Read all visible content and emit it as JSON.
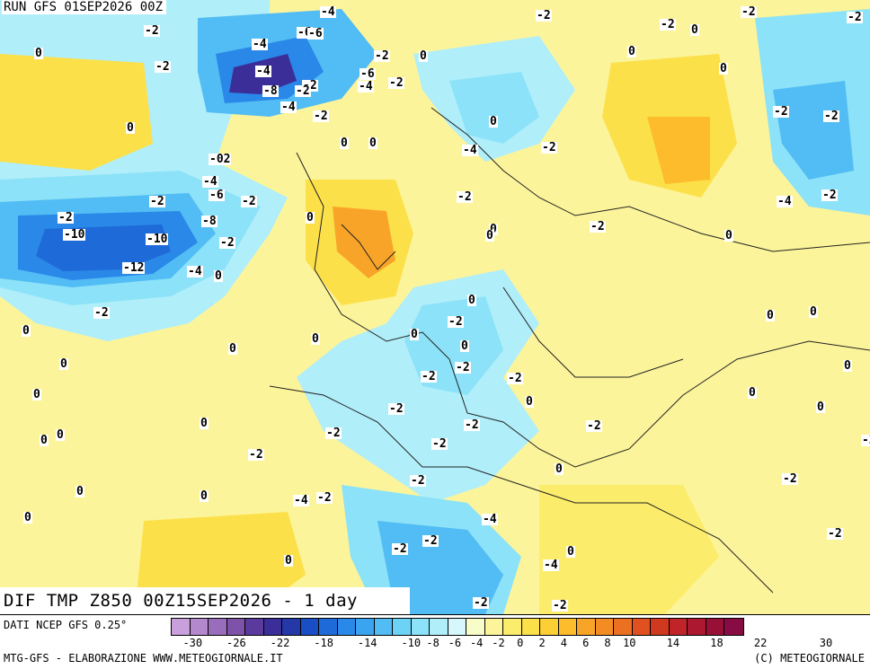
{
  "header": {
    "run": "RUN GFS 01SEP2026 00Z"
  },
  "title": "DIF TMP Z850 00Z15SEP2026 - 1 day",
  "footer": {
    "source": "DATI NCEP GFS 0.25°",
    "credit_left": "MTG-GFS - ELABORAZIONE WWW.METEOGIORNALE.IT",
    "credit_right": "(C) METEOGIORNALE"
  },
  "legend": {
    "colors": [
      "#c9a0dc",
      "#b488cc",
      "#9a6cbc",
      "#7e52a8",
      "#5a3a9c",
      "#3c2e98",
      "#2438a8",
      "#1a4ec4",
      "#1e6ad8",
      "#2a88e8",
      "#3aa4f0",
      "#52bcf4",
      "#6cd2f6",
      "#8ce2f8",
      "#b0eefa",
      "#d6f8fc",
      "#f8fcc8",
      "#fcf49a",
      "#fcec6c",
      "#fce04a",
      "#fcd034",
      "#fcbc2c",
      "#f8a428",
      "#f48c24",
      "#ec7022",
      "#e05020",
      "#d03820",
      "#c02428",
      "#ac1830",
      "#981038",
      "#880c44"
    ],
    "ticks": [
      "-30",
      "-26",
      "-22",
      "-18",
      "-14",
      "-10",
      "-8",
      "-6",
      "-4",
      "-2",
      "0",
      "2",
      "4",
      "6",
      "8",
      "10",
      "14",
      "18",
      "22",
      "30"
    ]
  },
  "map": {
    "contour_labels": [
      "0",
      "-2",
      "-4",
      "-6",
      "-8",
      "-10",
      "-12",
      "-02",
      "0",
      "-2",
      "-4",
      "-6",
      "-8",
      "-10",
      "-2",
      "0",
      "-2",
      "-4",
      "-2",
      "0",
      "-2",
      "-2",
      "0",
      "-4",
      "-2",
      "-6",
      "-4",
      "-2",
      "-2",
      "-2",
      "-4",
      "-2",
      "-4",
      "-6",
      "-2",
      "-2",
      "-4",
      "-2",
      "-2",
      "-2",
      "-2",
      "-2",
      "0",
      "0",
      "0",
      "0",
      "0",
      "0",
      "0",
      "0",
      "0",
      "0",
      "0",
      "0",
      "0",
      "0",
      "0",
      "0",
      "0",
      "0",
      "0",
      "0",
      "0",
      "0",
      "0",
      "0",
      "0",
      "0",
      "0",
      "0",
      "0",
      "0",
      "0",
      "0",
      "-2",
      "-2",
      "-2",
      "-2",
      "-2",
      "-2",
      "-2",
      "-2",
      "-2",
      "-2",
      "-2",
      "-2",
      "-2",
      "-2",
      "-2",
      "-4",
      "-4",
      "-2",
      "-2",
      "-4",
      "-2",
      "-2",
      "-4",
      "-2",
      "-2",
      "-2"
    ]
  }
}
